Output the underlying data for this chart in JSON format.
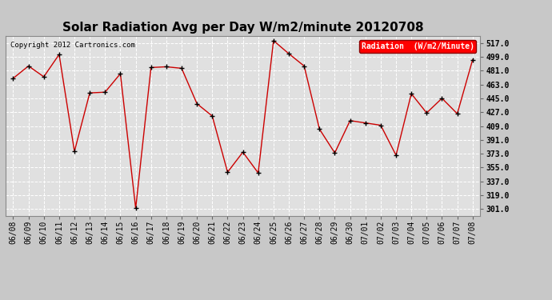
{
  "title": "Solar Radiation Avg per Day W/m2/minute 20120708",
  "copyright": "Copyright 2012 Cartronics.com",
  "legend_label": "Radiation  (W/m2/Minute)",
  "background_color": "#c8c8c8",
  "plot_bg_color": "#e0e0e0",
  "grid_color": "#ffffff",
  "line_color": "#cc0000",
  "marker_color": "#000000",
  "title_fontsize": 11,
  "tick_fontsize": 7,
  "ylim_min": 292,
  "ylim_max": 526,
  "yticks": [
    301.0,
    319.0,
    337.0,
    355.0,
    373.0,
    391.0,
    409.0,
    427.0,
    445.0,
    463.0,
    481.0,
    499.0,
    517.0
  ],
  "dates": [
    "06/08",
    "06/09",
    "06/10",
    "06/11",
    "06/12",
    "06/13",
    "06/14",
    "06/15",
    "06/16",
    "06/17",
    "06/18",
    "06/19",
    "06/20",
    "06/21",
    "06/22",
    "06/23",
    "06/24",
    "06/25",
    "06/26",
    "06/27",
    "06/28",
    "06/29",
    "06/30",
    "07/01",
    "07/02",
    "07/03",
    "07/04",
    "07/05",
    "07/06",
    "07/07",
    "07/08"
  ],
  "values": [
    471.0,
    487.0,
    473.0,
    502.0,
    376.0,
    452.0,
    453.0,
    477.0,
    302.0,
    485.0,
    486.0,
    484.0,
    438.0,
    422.0,
    349.0,
    375.0,
    348.0,
    520.0,
    503.0,
    487.0,
    405.0,
    374.0,
    416.0,
    413.0,
    410.0,
    371.0,
    451.0,
    426.0,
    445.0,
    425.0,
    495.0
  ]
}
